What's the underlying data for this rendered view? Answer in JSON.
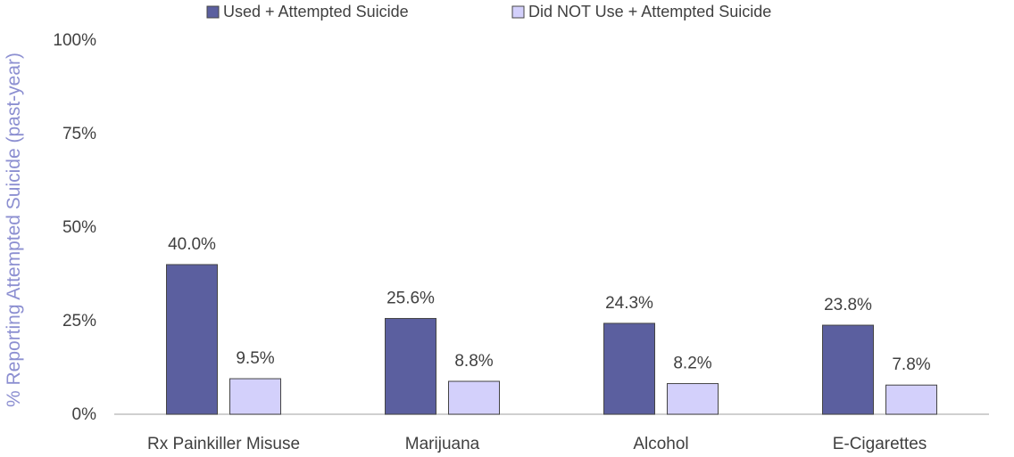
{
  "colors": {
    "series_used": "#5b5f9f",
    "series_not_used": "#d3d0fb",
    "bar_stroke": "#444444",
    "axis": "#bfbfbf",
    "ylabel": "#8c8fd1"
  },
  "chart_data": {
    "type": "bar",
    "title": "",
    "xlabel": "",
    "ylabel": "% Reporting Attempted Suicide (past-year)",
    "categories": [
      "Rx Painkiller Misuse",
      "Marijuana",
      "Alcohol",
      "E-Cigarettes"
    ],
    "series": [
      {
        "name": "Used + Attempted Suicide",
        "values": [
          40.0,
          25.6,
          24.3,
          23.8
        ],
        "labels": [
          "40.0%",
          "25.6%",
          "24.3%",
          "23.8%"
        ]
      },
      {
        "name": "Did NOT Use + Attempted Suicide",
        "values": [
          9.5,
          8.8,
          8.2,
          7.8
        ],
        "labels": [
          "9.5%",
          "8.8%",
          "8.2%",
          "7.8%"
        ]
      }
    ],
    "ylim": [
      0,
      100
    ],
    "yticks": [
      0,
      25,
      50,
      75,
      100
    ],
    "ytick_labels": [
      "0%",
      "25%",
      "50%",
      "75%",
      "100%"
    ],
    "grid": false,
    "legend_position": "top-center"
  }
}
